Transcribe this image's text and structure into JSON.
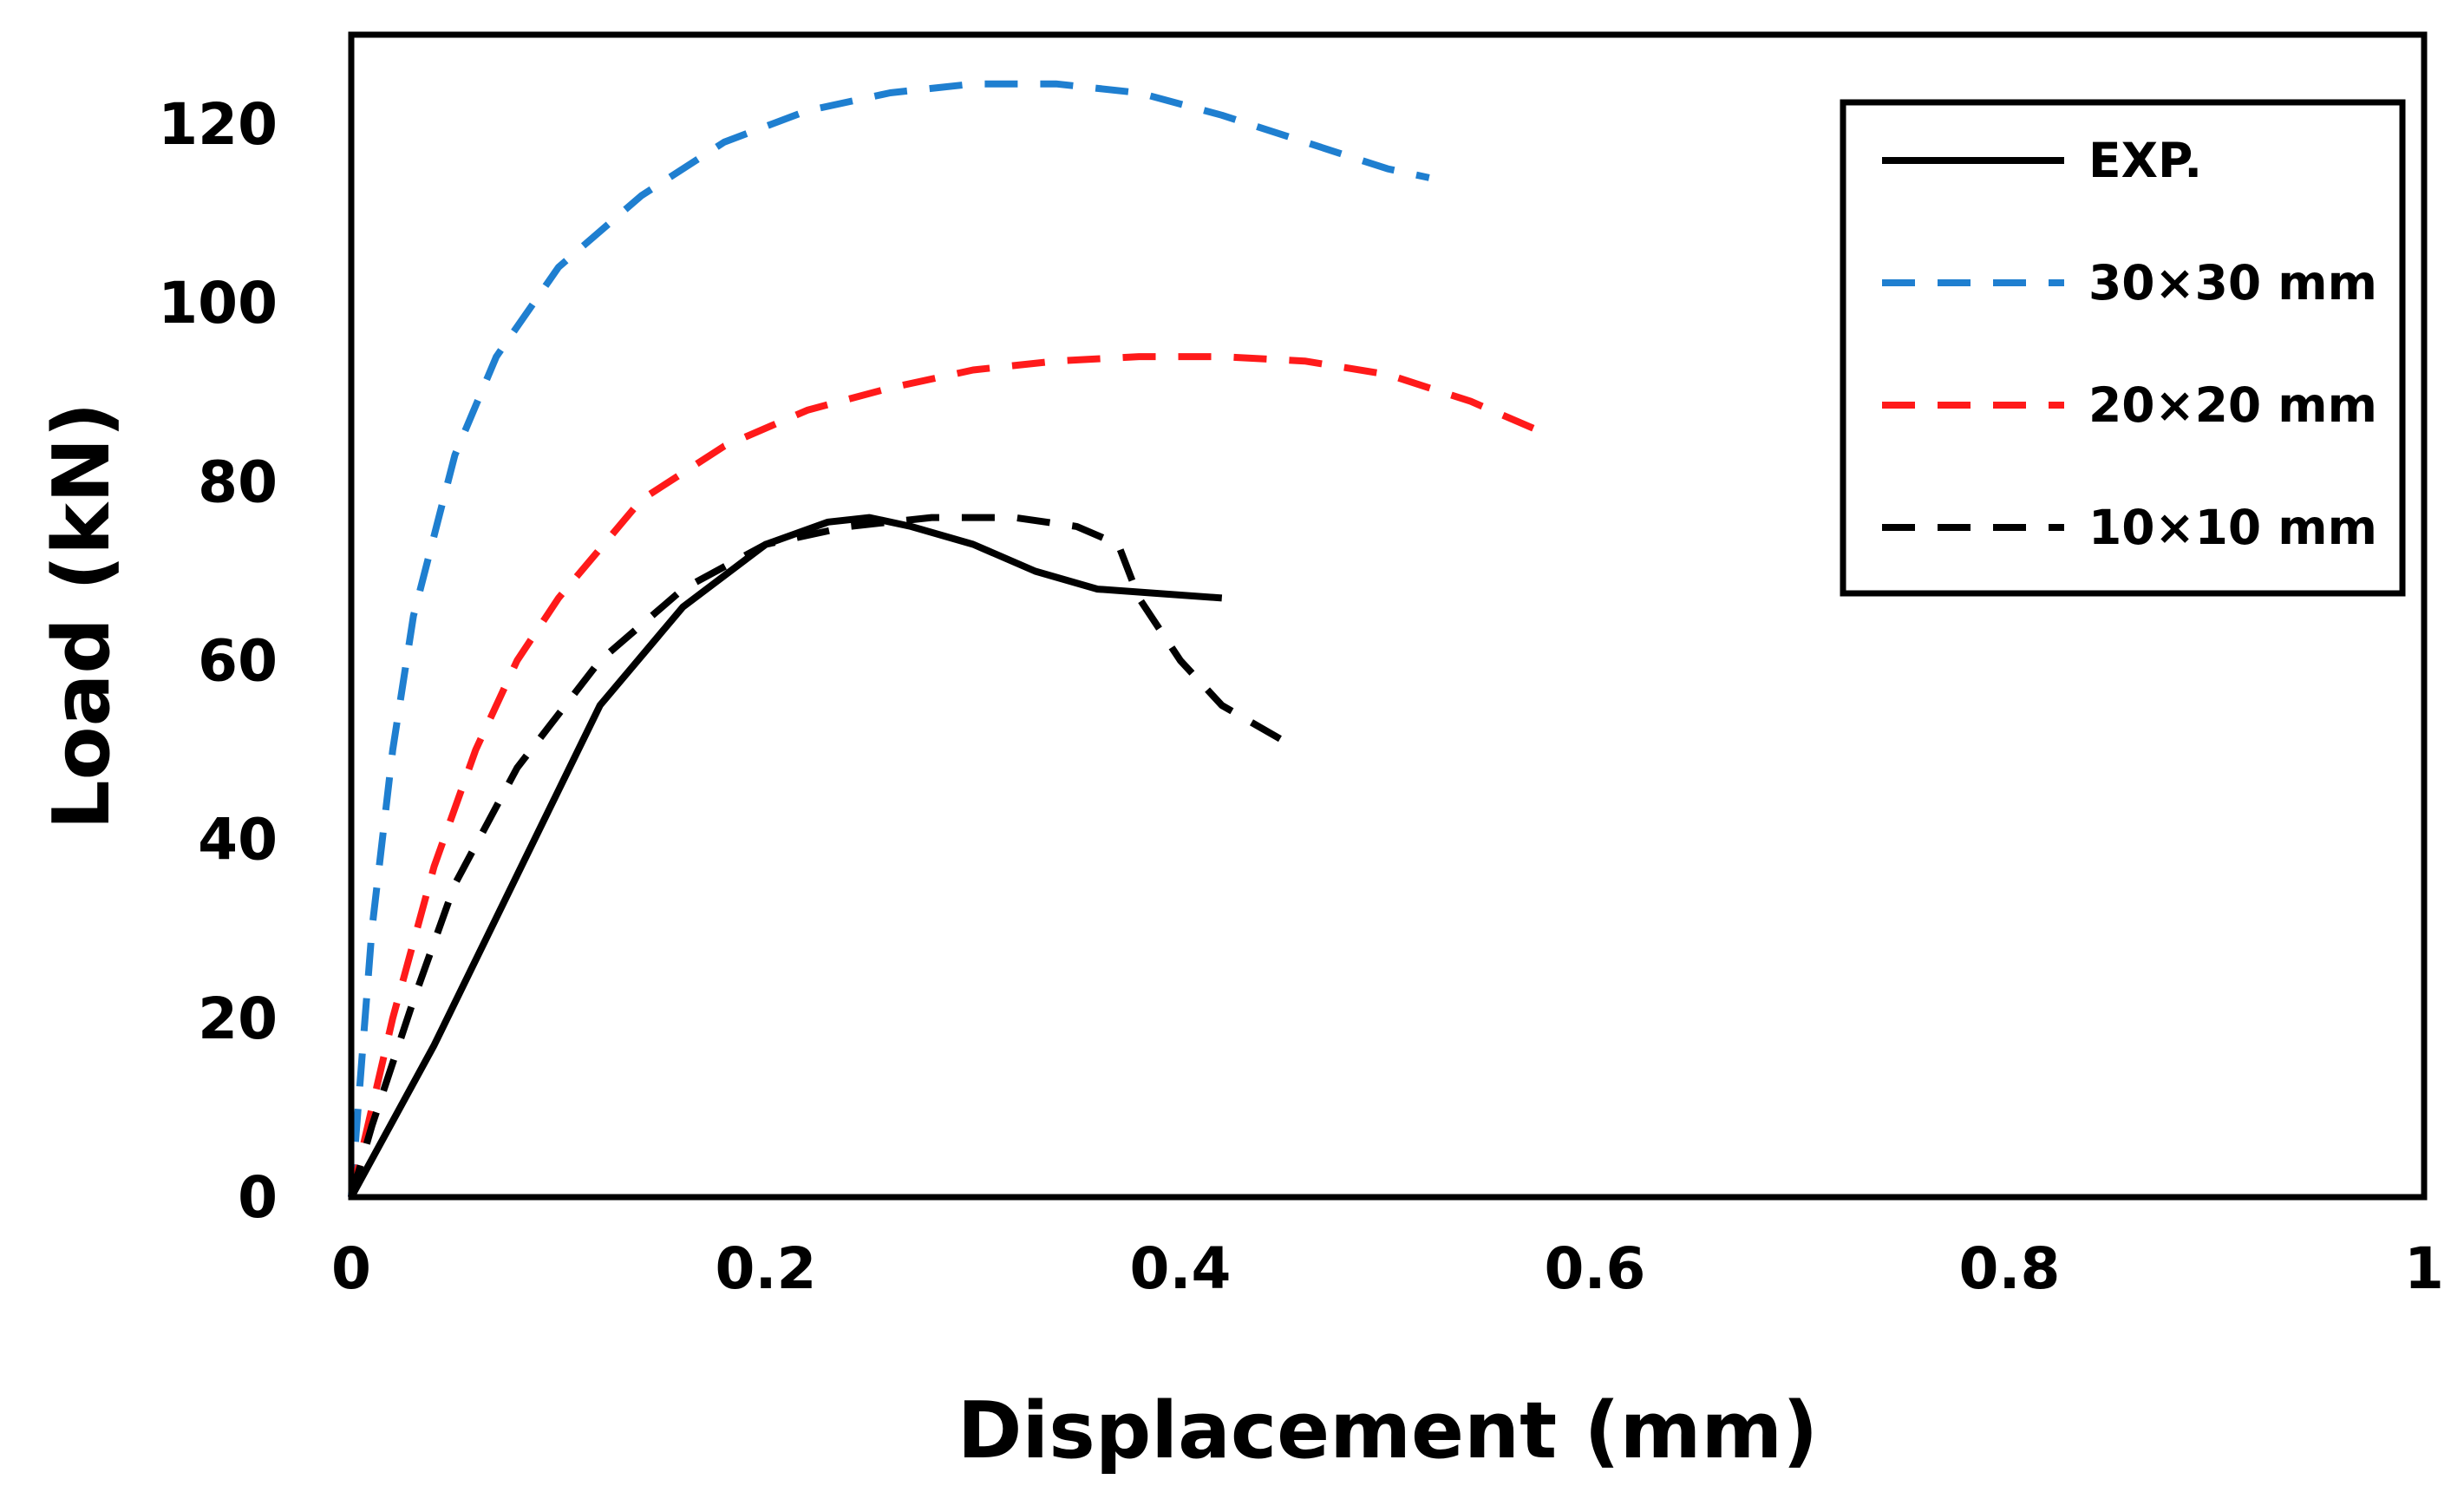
{
  "chart_data": {
    "type": "line",
    "title": "",
    "xlabel": "Displacement (mm)",
    "ylabel": "Load (kN)",
    "xlim": [
      0,
      1
    ],
    "ylim": [
      0,
      130
    ],
    "xticks": [
      0,
      0.2,
      0.4,
      0.6,
      0.8,
      1
    ],
    "xtick_labels": [
      "0",
      "0.2",
      "0.4",
      "0.6",
      "0.8",
      "1"
    ],
    "yticks": [
      0,
      20,
      40,
      60,
      80,
      100,
      120
    ],
    "ytick_labels": [
      "0",
      "20",
      "40",
      "60",
      "80",
      "100",
      "120"
    ],
    "grid": false,
    "legend_position": "top-right",
    "series": [
      {
        "name": "EXP.",
        "color": "#000000",
        "dash": "solid",
        "x": [
          0,
          0.04,
          0.08,
          0.12,
          0.16,
          0.2,
          0.23,
          0.25,
          0.27,
          0.3,
          0.33,
          0.36,
          0.39,
          0.42
        ],
        "y": [
          0,
          17,
          36,
          55,
          66,
          73,
          75.5,
          76,
          75,
          73,
          70,
          68,
          67.5,
          67
        ]
      },
      {
        "name": "30×30 mm",
        "color": "#1f7fd0",
        "dash": "dashed",
        "x": [
          0,
          0.005,
          0.01,
          0.02,
          0.03,
          0.05,
          0.07,
          0.1,
          0.14,
          0.18,
          0.22,
          0.26,
          0.3,
          0.34,
          0.38,
          0.42,
          0.46,
          0.5,
          0.52
        ],
        "y": [
          0,
          15,
          30,
          50,
          65,
          83,
          94,
          104,
          112,
          118,
          121.5,
          123.5,
          124.5,
          124.5,
          123.5,
          121,
          118,
          115,
          114
        ]
      },
      {
        "name": "20×20 mm",
        "color": "#ff1a1a",
        "dash": "dashed",
        "x": [
          0,
          0.01,
          0.02,
          0.04,
          0.06,
          0.08,
          0.1,
          0.14,
          0.18,
          0.22,
          0.26,
          0.3,
          0.34,
          0.38,
          0.42,
          0.46,
          0.5,
          0.54,
          0.58
        ],
        "y": [
          0,
          10,
          20,
          37,
          50,
          60,
          67,
          78,
          84,
          88,
          90.5,
          92.5,
          93.5,
          94,
          94,
          93.5,
          92,
          89,
          85
        ]
      },
      {
        "name": "10×10 mm",
        "color": "#000000",
        "dash": "dashed",
        "x": [
          0,
          0.01,
          0.03,
          0.05,
          0.08,
          0.12,
          0.16,
          0.2,
          0.24,
          0.28,
          0.32,
          0.35,
          0.37,
          0.38,
          0.4,
          0.42,
          0.45
        ],
        "y": [
          0,
          8,
          22,
          35,
          48,
          60,
          68,
          73,
          75,
          76,
          76,
          75,
          73,
          67,
          60,
          55,
          51
        ]
      }
    ]
  }
}
